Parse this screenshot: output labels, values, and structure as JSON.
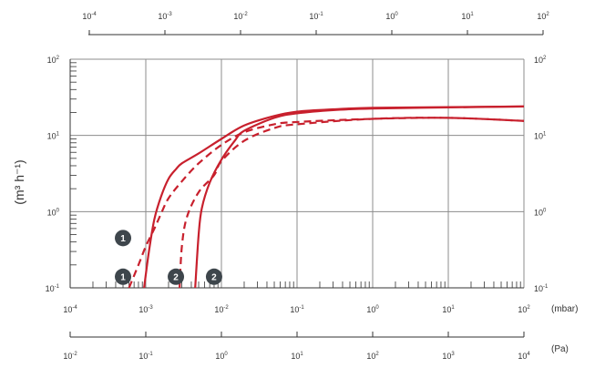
{
  "colors": {
    "curve": "#c8202d",
    "grid": "#8c8c8c",
    "axis": "#333333",
    "marker_fill": "#3e464c",
    "marker_text": "#ffffff"
  },
  "chart_data": {
    "type": "line",
    "title": "",
    "ylabel": "(m³ h⁻¹)",
    "x_scale": "log",
    "y_scale": "log",
    "xlim_mbar": [
      0.0001,
      100
    ],
    "ylim": [
      0.1,
      100
    ],
    "grid": true,
    "axes": {
      "top": {
        "unit": "",
        "ticks": [
          "10-4",
          "10-3",
          "10-2",
          "10-1",
          "100",
          "101",
          "102"
        ]
      },
      "bottom_mbar": {
        "unit": "(mbar)",
        "ticks": [
          "10-4",
          "10-3",
          "10-2",
          "10-1",
          "100",
          "101",
          "102"
        ]
      },
      "bottom_pa": {
        "unit": "(Pa)",
        "ticks": [
          "10-2",
          "10-1",
          "100",
          "101",
          "102",
          "103",
          "104"
        ]
      },
      "left": {
        "ticks": [
          "10-1",
          "100",
          "101",
          "102"
        ]
      },
      "right": {
        "ticks": [
          "10-1",
          "100",
          "101",
          "102"
        ]
      }
    },
    "markers": [
      {
        "label": "1",
        "x": 0.0005,
        "y": 0.45
      },
      {
        "label": "1",
        "x": 0.0005,
        "y": 0.14
      },
      {
        "label": "2",
        "x": 0.0025,
        "y": 0.14
      },
      {
        "label": "2",
        "x": 0.008,
        "y": 0.14
      }
    ],
    "series": [
      {
        "style": "solid",
        "points": [
          [
            0.00095,
            0.1
          ],
          [
            0.0011,
            0.3
          ],
          [
            0.0013,
            0.8
          ],
          [
            0.0016,
            1.6
          ],
          [
            0.002,
            2.7
          ],
          [
            0.0025,
            3.6
          ],
          [
            0.003,
            4.3
          ],
          [
            0.005,
            5.8
          ],
          [
            0.01,
            9.0
          ],
          [
            0.02,
            13.5
          ],
          [
            0.05,
            18.0
          ],
          [
            0.1,
            20.5
          ],
          [
            0.3,
            22.0
          ],
          [
            1,
            23.0
          ],
          [
            10,
            23.5
          ],
          [
            100,
            24.0
          ]
        ]
      },
      {
        "style": "dashed",
        "points": [
          [
            0.0006,
            0.1
          ],
          [
            0.0008,
            0.2
          ],
          [
            0.001,
            0.35
          ],
          [
            0.0013,
            0.6
          ],
          [
            0.0016,
            0.95
          ],
          [
            0.002,
            1.5
          ],
          [
            0.003,
            2.5
          ],
          [
            0.005,
            4.3
          ],
          [
            0.01,
            7.5
          ],
          [
            0.02,
            11.0
          ],
          [
            0.05,
            14.0
          ],
          [
            0.1,
            15.0
          ],
          [
            1,
            16.5
          ],
          [
            10,
            17.0
          ],
          [
            100,
            15.5
          ]
        ]
      },
      {
        "style": "solid",
        "points": [
          [
            0.0045,
            0.1
          ],
          [
            0.005,
            0.5
          ],
          [
            0.0055,
            1.1
          ],
          [
            0.007,
            2.4
          ],
          [
            0.01,
            4.8
          ],
          [
            0.015,
            8.5
          ],
          [
            0.02,
            11.5
          ],
          [
            0.05,
            17.0
          ],
          [
            0.1,
            19.5
          ],
          [
            0.3,
            21.5
          ],
          [
            1,
            22.5
          ],
          [
            10,
            23.3
          ],
          [
            100,
            24.0
          ]
        ]
      },
      {
        "style": "dashed",
        "points": [
          [
            0.0028,
            0.1
          ],
          [
            0.003,
            0.35
          ],
          [
            0.0035,
            0.85
          ],
          [
            0.005,
            1.8
          ],
          [
            0.008,
            3.0
          ],
          [
            0.01,
            4.6
          ],
          [
            0.02,
            8.5
          ],
          [
            0.05,
            12.5
          ],
          [
            0.1,
            14.0
          ],
          [
            1,
            16.5
          ],
          [
            10,
            17.0
          ],
          [
            100,
            15.5
          ]
        ]
      }
    ]
  }
}
